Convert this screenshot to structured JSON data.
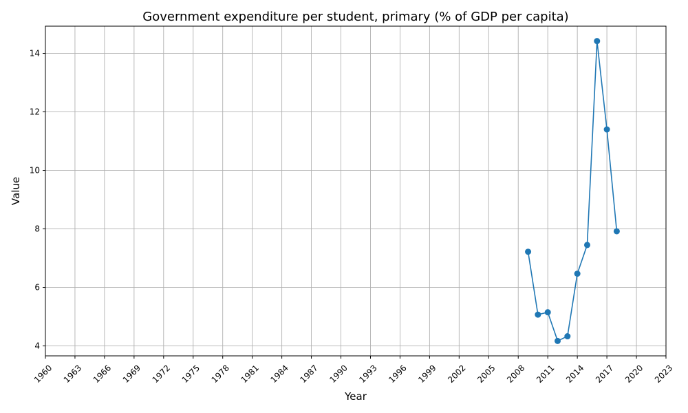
{
  "chart_data": {
    "type": "line",
    "title": "Government expenditure per student, primary (% of GDP per capita)",
    "xlabel": "Year",
    "ylabel": "Value",
    "xlim": [
      1960,
      2023
    ],
    "ylim": [
      3.66,
      14.93
    ],
    "xticks": [
      1960,
      1963,
      1966,
      1969,
      1972,
      1975,
      1978,
      1981,
      1984,
      1987,
      1990,
      1993,
      1996,
      1999,
      2002,
      2005,
      2008,
      2011,
      2014,
      2017,
      2020,
      2023
    ],
    "yticks": [
      4,
      6,
      8,
      10,
      12,
      14
    ],
    "grid": true,
    "color": "#1f77b4",
    "series": [
      {
        "x": [
          2009,
          2010,
          2011,
          2012,
          2013,
          2014,
          2015,
          2016,
          2017,
          2018
        ],
        "values": [
          7.22,
          5.07,
          5.15,
          4.17,
          4.33,
          6.47,
          7.45,
          14.42,
          11.4,
          7.92
        ]
      }
    ]
  }
}
